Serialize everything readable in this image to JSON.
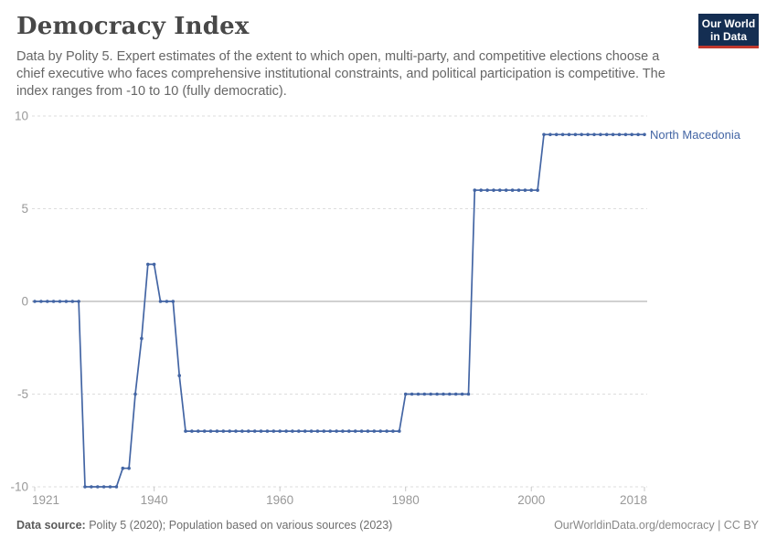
{
  "header": {
    "title": "Democracy Index",
    "subtitle": "Data by Polity 5. Expert estimates of the extent to which open, multi-party, and competitive elections choose a chief executive who faces comprehensive institutional constraints, and political participation is competitive. The index ranges from -10 to 10 (fully democratic).",
    "logo_line1": "Our World",
    "logo_line2": "in Data"
  },
  "footer": {
    "source_label": "Data source:",
    "source_text": " Polity 5 (2020); Population based on various sources (2023)",
    "credit": "OurWorldinData.org/democracy | CC BY"
  },
  "colors": {
    "line": "#4365a4",
    "grid": "#dddddd",
    "zero_line": "#a3a3a3",
    "tick": "#c8c8c8",
    "axis_text": "#999999",
    "logo_bg": "#142e52",
    "logo_stripe": "#c0372d"
  },
  "chart_data": {
    "type": "line",
    "title": "Democracy Index",
    "xlabel": "",
    "ylabel": "",
    "xlim": [
      1921,
      2018
    ],
    "ylim": [
      -10,
      10
    ],
    "xticks": [
      1921,
      1940,
      1960,
      1980,
      2000,
      2018
    ],
    "yticks": [
      10,
      5,
      0,
      -5,
      -10
    ],
    "grid": "horizontal-dashed, solid zero line",
    "legend_position": "label at end of line",
    "series": [
      {
        "name": "North Macedonia",
        "segments": [
          {
            "from": 1921,
            "to": 1928,
            "value": 0
          },
          {
            "from": 1929,
            "to": 1934,
            "value": -10
          },
          {
            "from": 1935,
            "to": 1936,
            "value": -9
          },
          {
            "from": 1937,
            "to": 1937,
            "value": -5
          },
          {
            "from": 1938,
            "to": 1938,
            "value": -2
          },
          {
            "from": 1939,
            "to": 1940,
            "value": 2
          },
          {
            "from": 1941,
            "to": 1943,
            "value": 0
          },
          {
            "from": 1944,
            "to": 1944,
            "value": -4
          },
          {
            "from": 1945,
            "to": 1979,
            "value": -7
          },
          {
            "from": 1980,
            "to": 1990,
            "value": -5
          },
          {
            "from": 1991,
            "to": 2001,
            "value": 6
          },
          {
            "from": 2002,
            "to": 2018,
            "value": 9
          }
        ]
      }
    ]
  }
}
